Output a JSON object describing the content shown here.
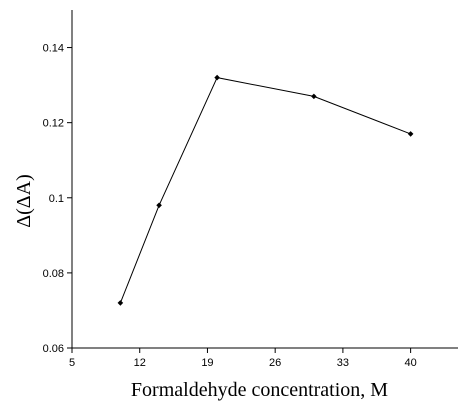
{
  "chart_data": {
    "type": "line",
    "title": "",
    "xlabel": "Formaldehyde concentration, M",
    "ylabel": "Δ(ΔA)",
    "x": [
      10,
      14,
      20,
      30,
      40
    ],
    "series": [
      {
        "values": [
          0.072,
          0.098,
          0.132,
          0.127,
          0.117
        ]
      }
    ],
    "xlim": [
      5,
      45
    ],
    "ylim": [
      0.06,
      0.15
    ],
    "x_ticks": [
      "5",
      "12",
      "19",
      "26",
      "33",
      "40"
    ],
    "y_ticks": [
      "0.06",
      "0.08",
      "0.1",
      "0.12",
      "0.14"
    ],
    "grid": false,
    "legend": "none",
    "colors": {
      "line": "#000000",
      "marker": "#000000",
      "axis": "#000000"
    }
  }
}
